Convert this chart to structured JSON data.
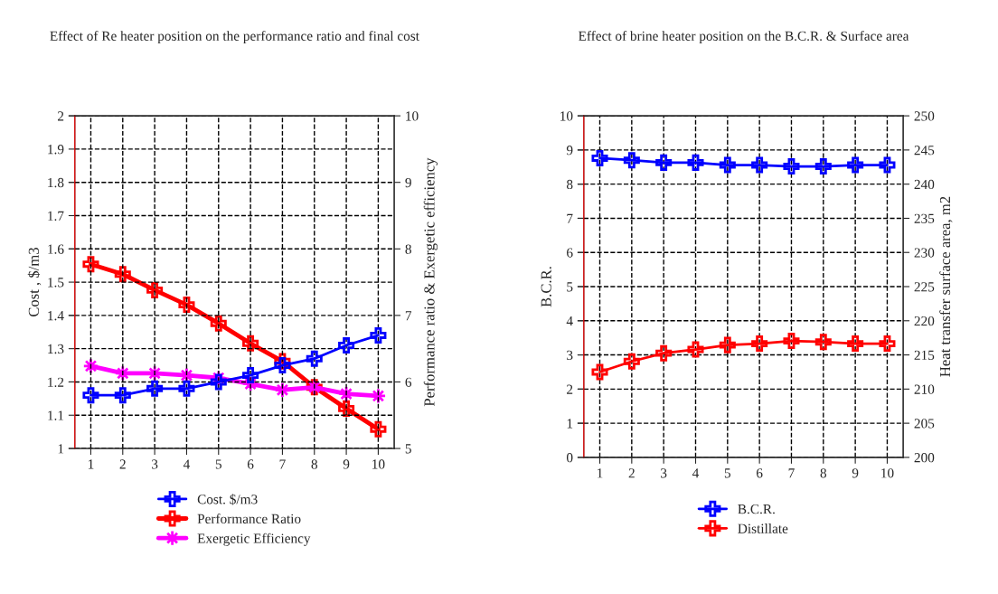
{
  "chart_data": [
    {
      "type": "line",
      "title": "Effect of Re heater position on the performance ratio and final cost",
      "xlabel": null,
      "ylabel": "Cost , $/m3",
      "y2label": "Performance ratio & Exergetic efficiency",
      "categories": [
        "1",
        "2",
        "3",
        "4",
        "5",
        "6",
        "7",
        "8",
        "9",
        "10"
      ],
      "ylim": [
        1,
        2
      ],
      "yticks": [
        1,
        1.1,
        1.2,
        1.3,
        1.4,
        1.5,
        1.6,
        1.7,
        1.8,
        1.9,
        2
      ],
      "y2lim": [
        5,
        10
      ],
      "y2ticks": [
        5,
        6,
        7,
        8,
        9,
        10
      ],
      "grid": true,
      "legend": "bottom",
      "series": [
        {
          "name": "Cost. $/m3",
          "color": "#0000ff",
          "marker": "cross",
          "values": [
            1.16,
            1.16,
            1.18,
            1.18,
            1.2,
            1.22,
            1.25,
            1.27,
            1.31,
            1.34
          ]
        },
        {
          "name": "Performance Ratio",
          "color": "#ff0000",
          "marker": "cross",
          "axis": "y2",
          "values": [
            7.77,
            7.62,
            7.38,
            7.16,
            6.88,
            6.58,
            6.31,
            5.92,
            5.6,
            5.29
          ]
        },
        {
          "name": "Exergetic Efficiency",
          "color": "#ff00ff",
          "marker": "star",
          "axis": "y2",
          "values": [
            6.24,
            6.13,
            6.13,
            6.1,
            6.06,
            5.97,
            5.88,
            5.92,
            5.82,
            5.79
          ]
        }
      ]
    },
    {
      "type": "line",
      "title": "Effect of brine heater position on the B.C.R. & Surface area",
      "ylabel": "B.C.R.",
      "y2label": "Heat transfer surface area, m2",
      "categories": [
        "1",
        "2",
        "3",
        "4",
        "5",
        "6",
        "7",
        "8",
        "9",
        "10"
      ],
      "ylim": [
        0,
        10
      ],
      "yticks": [
        0,
        1,
        2,
        3,
        4,
        5,
        6,
        7,
        8,
        9,
        10
      ],
      "y2lim": [
        200,
        250
      ],
      "y2ticks": [
        200,
        205,
        210,
        215,
        220,
        225,
        230,
        235,
        240,
        245,
        250
      ],
      "grid": true,
      "legend": "bottom",
      "series": [
        {
          "name": "B.C.R.",
          "color": "#0000ff",
          "marker": "cross",
          "values": [
            8.76,
            8.7,
            8.63,
            8.63,
            8.56,
            8.56,
            8.52,
            8.52,
            8.56,
            8.56
          ]
        },
        {
          "name": "Distillate",
          "color": "#ff0000",
          "marker": "cross",
          "values": [
            2.5,
            2.81,
            3.05,
            3.16,
            3.29,
            3.33,
            3.41,
            3.38,
            3.33,
            3.33
          ]
        }
      ]
    }
  ]
}
